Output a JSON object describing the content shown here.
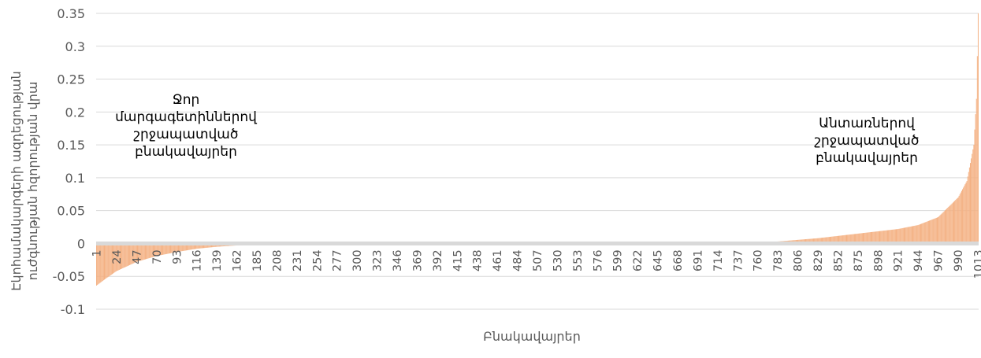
{
  "chart_data": {
    "type": "bar",
    "n_points": 1013,
    "title": "",
    "xlabel": "Բնակավայրեր",
    "ylabel_lines": [
      "Էկոհամակարգերի ազդեցության",
      "ուժգնության հզորության վրա"
    ],
    "ylim": [
      -0.1,
      0.35
    ],
    "y_ticks": [
      "-0.1",
      "-0.05",
      "0",
      "0.05",
      "0.1",
      "0.15",
      "0.2",
      "0.25",
      "0.3",
      "0.35"
    ],
    "x_tick_labels": [
      "1",
      "24",
      "47",
      "70",
      "93",
      "116",
      "139",
      "162",
      "185",
      "208",
      "231",
      "254",
      "277",
      "300",
      "323",
      "346",
      "369",
      "392",
      "415",
      "438",
      "461",
      "484",
      "507",
      "530",
      "553",
      "576",
      "599",
      "622",
      "645",
      "668",
      "691",
      "714",
      "737",
      "760",
      "783",
      "806",
      "829",
      "852",
      "875",
      "898",
      "921",
      "944",
      "967",
      "990",
      "1013"
    ],
    "sorted_values_profile": [
      [
        1,
        -0.064
      ],
      [
        10,
        -0.055
      ],
      [
        24,
        -0.042
      ],
      [
        47,
        -0.028
      ],
      [
        70,
        -0.019
      ],
      [
        93,
        -0.013
      ],
      [
        116,
        -0.008
      ],
      [
        139,
        -0.005
      ],
      [
        162,
        -0.003
      ],
      [
        185,
        -0.0015
      ],
      [
        260,
        -0.0008
      ],
      [
        400,
        -0.0003
      ],
      [
        600,
        0.0003
      ],
      [
        740,
        0.001
      ],
      [
        783,
        0.003
      ],
      [
        829,
        0.008
      ],
      [
        875,
        0.015
      ],
      [
        921,
        0.022
      ],
      [
        944,
        0.028
      ],
      [
        967,
        0.04
      ],
      [
        990,
        0.07
      ],
      [
        1000,
        0.095
      ],
      [
        1008,
        0.15
      ],
      [
        1011,
        0.22
      ],
      [
        1013,
        0.35
      ]
    ],
    "grid": true,
    "legend": "none",
    "bar_color": "#F4B183",
    "zero_band_color": "#D9D9D9",
    "annotations": [
      {
        "lines": [
          "Ջոր",
          "մարգագետիններով",
          "շրջապատված",
          "բնակավայրեր"
        ]
      },
      {
        "lines": [
          "Անտառներով",
          "շրջապատված",
          "բնակավայրեր"
        ]
      }
    ]
  }
}
